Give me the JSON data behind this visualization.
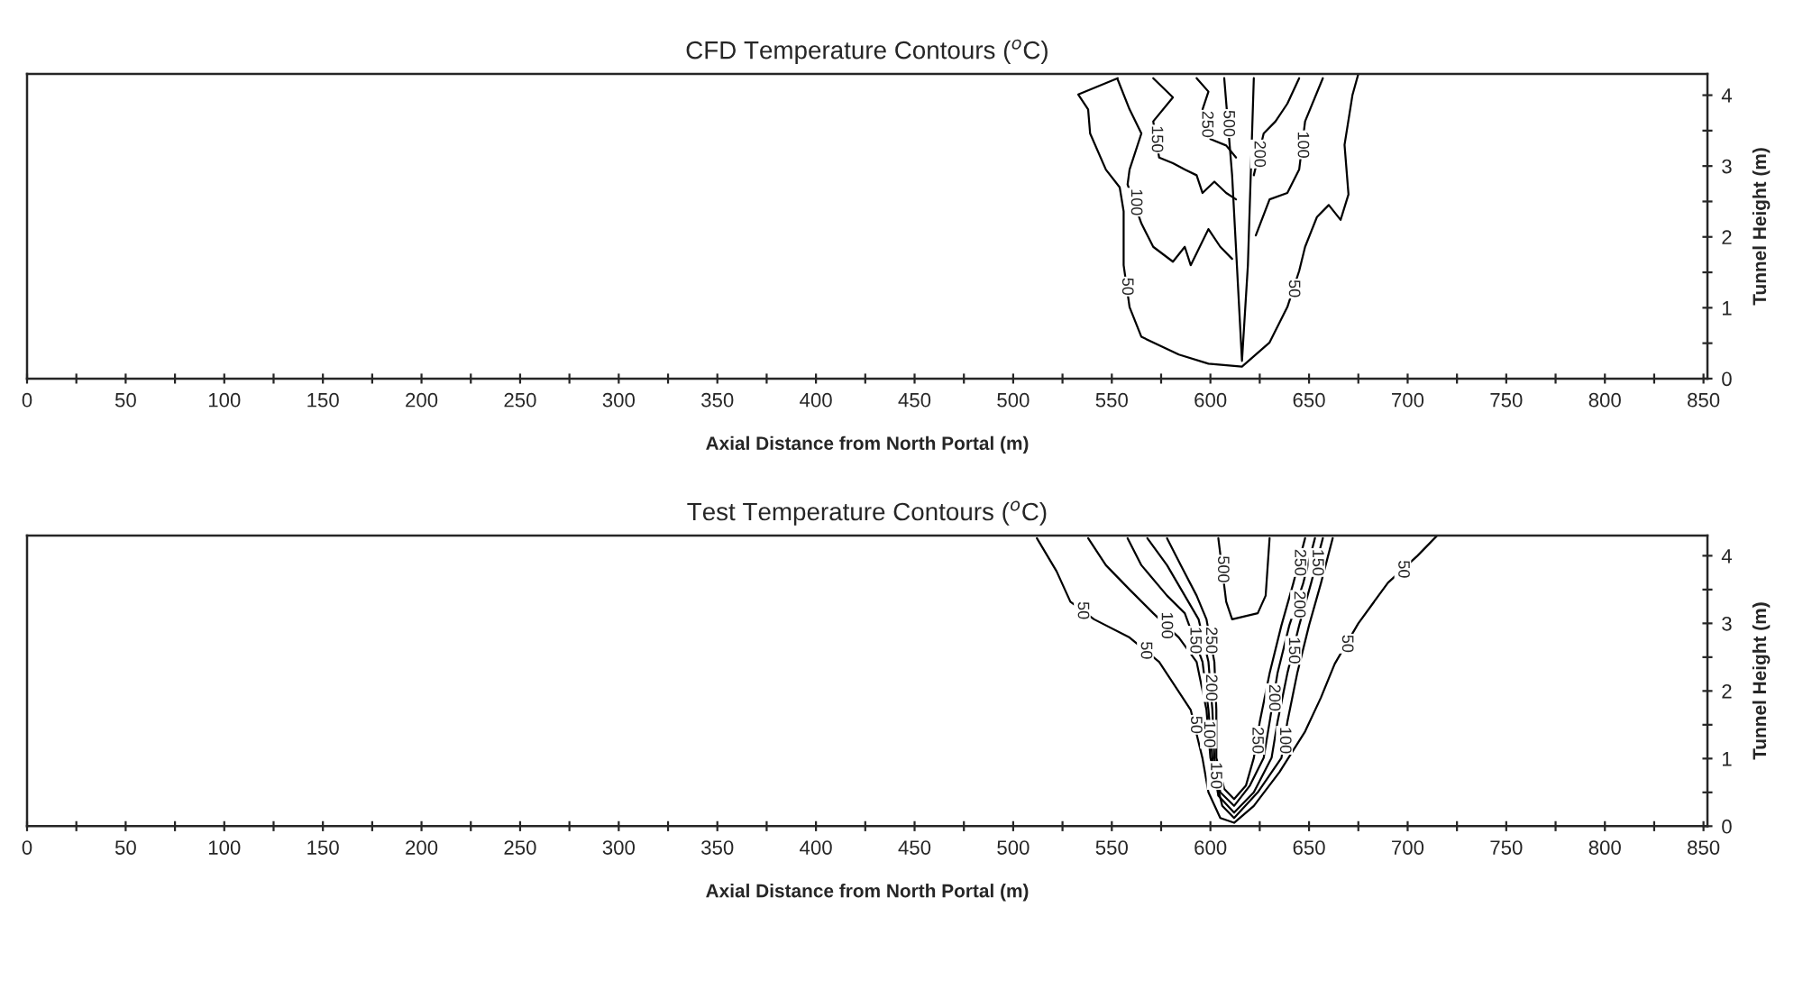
{
  "chart_data": [
    {
      "type": "line",
      "title": "CFD Temperature Contours ($^{o}$C)",
      "xlabel": "Axial Distance from North Portal (m)",
      "ylabel": "Tunnel Height (m)",
      "xlim": [
        0,
        852
      ],
      "ylim": [
        0,
        4.3
      ],
      "xticks": [
        0,
        {
          "value": 25,
          "label": null
        },
        50,
        {
          "value": 75,
          "label": null
        },
        100,
        {
          "value": 125,
          "label": null
        },
        150,
        {
          "value": 175,
          "label": null
        },
        200,
        {
          "value": 225,
          "label": null
        },
        250,
        {
          "value": 275,
          "label": null
        },
        300,
        {
          "value": 325,
          "label": null
        },
        350,
        {
          "value": 375,
          "label": null
        },
        400,
        {
          "value": 425,
          "label": null
        },
        450,
        {
          "value": 475,
          "label": null
        },
        500,
        {
          "value": 525,
          "label": null
        },
        550,
        {
          "value": 575,
          "label": null
        },
        600,
        {
          "value": 625,
          "label": null
        },
        650,
        {
          "value": 675,
          "label": null
        },
        700,
        {
          "value": 725,
          "label": null
        },
        750,
        {
          "value": 775,
          "label": null
        },
        800,
        {
          "value": 825,
          "label": null
        },
        850
      ],
      "yticks": [
        0,
        {
          "value": 0.5,
          "label": null
        },
        1,
        {
          "value": 1.5,
          "label": null
        },
        2,
        {
          "value": 2.5,
          "label": null
        },
        3,
        {
          "value": 3.5,
          "label": null
        },
        4
      ],
      "grid": false,
      "legend": false,
      "marker": "none",
      "line_style": "solid",
      "series": [
        {
          "color": "#000000",
          "x": [
            553,
            533,
            538,
            539,
            547,
            554,
            556,
            556,
            559,
            565,
            584,
            599,
            616,
            630,
            639,
            645,
            648,
            654,
            660,
            666,
            670,
            668,
            672,
            675
          ],
          "values": [
            4.24,
            4.01,
            3.8,
            3.46,
            2.95,
            2.7,
            2.36,
            1.6,
            1.01,
            0.59,
            0.34,
            0.21,
            0.17,
            0.51,
            1.01,
            1.52,
            1.86,
            2.28,
            2.45,
            2.24,
            2.6,
            3.3,
            4.0,
            4.3
          ]
        },
        {
          "color": "#000000",
          "x": [
            553,
            559,
            565,
            559,
            558,
            565,
            571,
            581,
            587,
            590,
            599,
            605,
            611
          ],
          "values": [
            4.22,
            3.8,
            3.46,
            2.95,
            2.74,
            2.19,
            1.86,
            1.65,
            1.86,
            1.6,
            2.11,
            1.86,
            1.69
          ]
        },
        {
          "color": "#000000",
          "x": [
            571,
            581,
            571,
            574,
            581,
            587,
            593,
            596,
            602,
            608,
            613
          ],
          "values": [
            4.24,
            3.97,
            3.63,
            3.12,
            3.04,
            2.95,
            2.87,
            2.62,
            2.78,
            2.62,
            2.53
          ]
        },
        {
          "color": "#000000",
          "x": [
            593,
            599,
            596,
            600,
            608,
            613
          ],
          "values": [
            4.24,
            4.05,
            3.8,
            3.38,
            3.29,
            3.12
          ]
        },
        {
          "color": "#000000",
          "x": [
            607,
            611,
            616,
            619,
            622
          ],
          "values": [
            4.24,
            2.87,
            0.25,
            1.6,
            4.24
          ]
        },
        {
          "color": "#000000",
          "x": [
            645,
            639,
            633,
            627,
            622
          ],
          "values": [
            4.24,
            3.88,
            3.63,
            3.46,
            2.87
          ]
        },
        {
          "color": "#000000",
          "x": [
            657,
            648,
            645,
            639,
            630,
            623
          ],
          "values": [
            4.24,
            3.63,
            2.95,
            2.62,
            2.53,
            2.02
          ]
        }
      ],
      "annotations": [
        {
          "text": "50",
          "x": 557.5,
          "y": 1.3
        },
        {
          "text": "100",
          "x": 562,
          "y": 2.49
        },
        {
          "text": "150",
          "x": 572.5,
          "y": 3.38
        },
        {
          "text": "250",
          "x": 598,
          "y": 3.59
        },
        {
          "text": "500",
          "x": 608.9,
          "y": 3.6
        },
        {
          "text": "200",
          "x": 624.5,
          "y": 3.17
        },
        {
          "text": "100",
          "x": 646.5,
          "y": 3.3
        },
        {
          "text": "50",
          "x": 642,
          "y": 1.27
        }
      ]
    },
    {
      "type": "line",
      "title": "Test Temperature Contours ($^{o}$C)",
      "xlabel": "Axial Distance from North Portal (m)",
      "ylabel": "Tunnel Height (m)",
      "xlim": [
        0,
        852
      ],
      "ylim": [
        0,
        4.3
      ],
      "xticks": [
        0,
        {
          "value": 25,
          "label": null
        },
        50,
        {
          "value": 75,
          "label": null
        },
        100,
        {
          "value": 125,
          "label": null
        },
        150,
        {
          "value": 175,
          "label": null
        },
        200,
        {
          "value": 225,
          "label": null
        },
        250,
        {
          "value": 275,
          "label": null
        },
        300,
        {
          "value": 325,
          "label": null
        },
        350,
        {
          "value": 375,
          "label": null
        },
        400,
        {
          "value": 425,
          "label": null
        },
        450,
        {
          "value": 475,
          "label": null
        },
        500,
        {
          "value": 525,
          "label": null
        },
        550,
        {
          "value": 575,
          "label": null
        },
        600,
        {
          "value": 625,
          "label": null
        },
        650,
        {
          "value": 675,
          "label": null
        },
        700,
        {
          "value": 725,
          "label": null
        },
        750,
        {
          "value": 775,
          "label": null
        },
        800,
        {
          "value": 825,
          "label": null
        },
        850
      ],
      "yticks": [
        0,
        {
          "value": 0.5,
          "label": null
        },
        1,
        {
          "value": 1.5,
          "label": null
        },
        2,
        {
          "value": 2.5,
          "label": null
        },
        3,
        {
          "value": 3.5,
          "label": null
        },
        4
      ],
      "grid": false,
      "legend": false,
      "marker": "none",
      "line_style": "solid",
      "series": [
        {
          "color": "#000000",
          "x": [
            512,
            522,
            529,
            541,
            559,
            574,
            590,
            596,
            599,
            605,
            612,
            622,
            635,
            648,
            656,
            663,
            675,
            690,
            705,
            715
          ],
          "values": [
            4.26,
            3.77,
            3.32,
            3.06,
            2.79,
            2.43,
            1.72,
            1.0,
            0.5,
            0.12,
            0.05,
            0.3,
            0.8,
            1.4,
            1.9,
            2.4,
            3.0,
            3.6,
            4.0,
            4.3
          ]
        },
        {
          "color": "#000000",
          "x": [
            538,
            547,
            559,
            571,
            584,
            593,
            598,
            600,
            606,
            612,
            624,
            636,
            639,
            644,
            650,
            656,
            662
          ],
          "values": [
            4.26,
            3.86,
            3.5,
            3.15,
            2.79,
            2.43,
            1.72,
            1.01,
            0.3,
            0.12,
            0.5,
            1.01,
            1.54,
            2.26,
            2.97,
            3.59,
            4.26
          ]
        },
        {
          "color": "#000000",
          "x": [
            558,
            565,
            578,
            587,
            596,
            599,
            601,
            604,
            612,
            622,
            631,
            634,
            639,
            645,
            651,
            657
          ],
          "values": [
            4.26,
            3.86,
            3.41,
            3.15,
            2.43,
            1.72,
            1.01,
            0.45,
            0.2,
            0.5,
            1.01,
            1.54,
            2.26,
            2.97,
            3.59,
            4.26
          ]
        },
        {
          "color": "#000000",
          "x": [
            568,
            578,
            587,
            594,
            599,
            601,
            602,
            605,
            612,
            620,
            627,
            630,
            634,
            640,
            647,
            653
          ],
          "values": [
            4.26,
            3.86,
            3.41,
            3.06,
            2.43,
            1.72,
            1.01,
            0.5,
            0.3,
            0.6,
            1.01,
            1.54,
            2.26,
            2.97,
            3.59,
            4.26
          ]
        },
        {
          "color": "#000000",
          "x": [
            578,
            585,
            593,
            598,
            602,
            603,
            603,
            607,
            612,
            618,
            622,
            625,
            630,
            636,
            642,
            648
          ],
          "values": [
            4.26,
            3.86,
            3.41,
            3.06,
            2.43,
            1.72,
            1.01,
            0.55,
            0.4,
            0.6,
            1.01,
            1.54,
            2.26,
            2.97,
            3.59,
            4.26
          ]
        },
        {
          "color": "#000000",
          "x": [
            604,
            608,
            611,
            624,
            628,
            630
          ],
          "values": [
            4.26,
            3.32,
            3.06,
            3.15,
            3.41,
            4.26
          ]
        }
      ],
      "annotations": [
        {
          "text": "50",
          "x": 535,
          "y": 3.19
        },
        {
          "text": "100",
          "x": 577.5,
          "y": 2.97
        },
        {
          "text": "150",
          "x": 592,
          "y": 2.75
        },
        {
          "text": "50",
          "x": 567,
          "y": 2.6
        },
        {
          "text": "250",
          "x": 600,
          "y": 2.75
        },
        {
          "text": "200",
          "x": 600,
          "y": 2.05
        },
        {
          "text": "100",
          "x": 599,
          "y": 1.36
        },
        {
          "text": "50",
          "x": 592.3,
          "y": 1.5
        },
        {
          "text": "150",
          "x": 602.4,
          "y": 0.75
        },
        {
          "text": "500",
          "x": 606,
          "y": 3.8
        },
        {
          "text": "250",
          "x": 645,
          "y": 3.9
        },
        {
          "text": "200",
          "x": 644.7,
          "y": 3.28
        },
        {
          "text": "150",
          "x": 654,
          "y": 3.9
        },
        {
          "text": "50",
          "x": 697.5,
          "y": 3.8
        },
        {
          "text": "250",
          "x": 623.5,
          "y": 1.27
        },
        {
          "text": "200",
          "x": 632,
          "y": 1.9
        },
        {
          "text": "150",
          "x": 642,
          "y": 2.6
        },
        {
          "text": "100",
          "x": 637.5,
          "y": 1.27
        },
        {
          "text": "50",
          "x": 669,
          "y": 2.7
        }
      ]
    }
  ]
}
